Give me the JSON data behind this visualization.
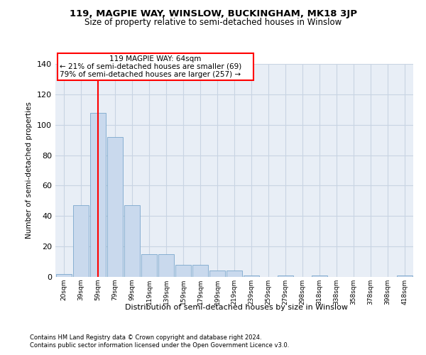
{
  "title": "119, MAGPIE WAY, WINSLOW, BUCKINGHAM, MK18 3JP",
  "subtitle": "Size of property relative to semi-detached houses in Winslow",
  "xlabel": "Distribution of semi-detached houses by size in Winslow",
  "ylabel": "Number of semi-detached properties",
  "bin_labels": [
    "20sqm",
    "39sqm",
    "59sqm",
    "79sqm",
    "99sqm",
    "119sqm",
    "139sqm",
    "159sqm",
    "179sqm",
    "199sqm",
    "219sqm",
    "239sqm",
    "259sqm",
    "279sqm",
    "298sqm",
    "318sqm",
    "338sqm",
    "358sqm",
    "378sqm",
    "398sqm",
    "418sqm"
  ],
  "bar_values": [
    2,
    47,
    108,
    92,
    47,
    15,
    15,
    8,
    8,
    4,
    4,
    1,
    0,
    1,
    0,
    1,
    0,
    0,
    0,
    0,
    1
  ],
  "bar_color": "#c9d9ed",
  "bar_edge_color": "#7aa7cc",
  "grid_color": "#c8d4e3",
  "bg_color": "#e8eef6",
  "red_line_x": 2.0,
  "annotation_text_line1": "119 MAGPIE WAY: 64sqm",
  "annotation_text_line2": "← 21% of semi-detached houses are smaller (69)",
  "annotation_text_line3": "79% of semi-detached houses are larger (257) →",
  "footer1": "Contains HM Land Registry data © Crown copyright and database right 2024.",
  "footer2": "Contains public sector information licensed under the Open Government Licence v3.0.",
  "ylim": [
    0,
    140
  ],
  "yticks": [
    0,
    20,
    40,
    60,
    80,
    100,
    120,
    140
  ]
}
